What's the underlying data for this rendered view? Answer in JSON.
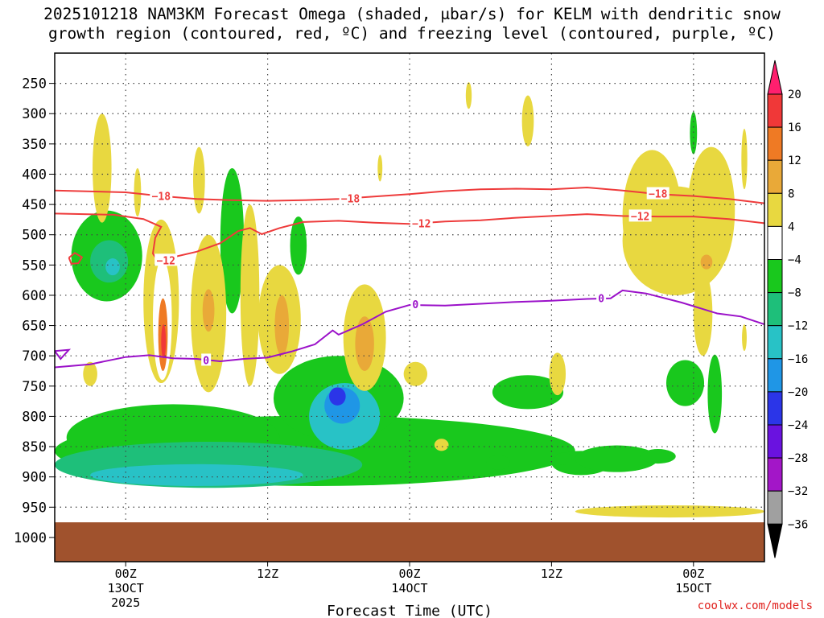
{
  "title": {
    "line1": "2025101218 NAM3KM Forecast Omega (shaded, μbar/s) for KELM with dendritic snow",
    "line2": "growth region (contoured, red, ºC) and freezing level (contoured, purple, ºC)"
  },
  "credit": "coolwx.com/models",
  "colors": {
    "red_contour": "#ee3b3b",
    "purple_contour": "#9b11c9",
    "ground": "#a0522d",
    "grid": "#444444"
  },
  "chart_data": {
    "type": "heatmap",
    "title": "2025101218 NAM3KM Forecast Omega (shaded, μbar/s) for KELM with dendritic snow growth region (contoured, red, ºC) and freezing level (contoured, purple, ºC)",
    "xlabel": "Forecast Time (UTC)",
    "ylabel": "",
    "x_range_hours": [
      -6,
      54
    ],
    "x_ticks": [
      {
        "hour": 0,
        "label": "00Z",
        "sub1": "13OCT",
        "sub2": "2025"
      },
      {
        "hour": 12,
        "label": "12Z",
        "sub1": "",
        "sub2": ""
      },
      {
        "hour": 24,
        "label": "00Z",
        "sub1": "14OCT",
        "sub2": ""
      },
      {
        "hour": 36,
        "label": "12Z",
        "sub1": "",
        "sub2": ""
      },
      {
        "hour": 48,
        "label": "00Z",
        "sub1": "15OCT",
        "sub2": ""
      }
    ],
    "y_range_mb": [
      200,
      1040
    ],
    "y_ticks": [
      250,
      300,
      350,
      400,
      450,
      500,
      550,
      600,
      650,
      700,
      750,
      800,
      850,
      900,
      950,
      1000
    ],
    "ground_top_mb": 975,
    "grid": true,
    "colorbar": {
      "labels": [
        "20",
        "16",
        "12",
        "8",
        "4",
        "−4",
        "−8",
        "−12",
        "−16",
        "−20",
        "−24",
        "−28",
        "−32",
        "−36"
      ],
      "bins": [
        {
          "color": "#ff1f6e"
        },
        {
          "color": "#f03838"
        },
        {
          "color": "#ef7a24"
        },
        {
          "color": "#e9a938"
        },
        {
          "color": "#e8d840"
        },
        {
          "color": "#ffffff"
        },
        {
          "color": "#19c81d"
        },
        {
          "color": "#1ebf7a"
        },
        {
          "color": "#28c2c6"
        },
        {
          "color": "#1f96e6"
        },
        {
          "color": "#2b35e8"
        },
        {
          "color": "#6a12e0"
        },
        {
          "color": "#a316c8"
        },
        {
          "color": "#a0a0a0"
        },
        {
          "color": "#000000"
        }
      ]
    },
    "contours": [
      {
        "label": "−18",
        "color": "#ee3b3b",
        "points": [
          [
            -6,
            427
          ],
          [
            0,
            430
          ],
          [
            3,
            436
          ],
          [
            6,
            441
          ],
          [
            9,
            443
          ],
          [
            12,
            444
          ],
          [
            15,
            443
          ],
          [
            18,
            441
          ],
          [
            21,
            437
          ],
          [
            24,
            433
          ],
          [
            27,
            428
          ],
          [
            30,
            425
          ],
          [
            33,
            424
          ],
          [
            36,
            425
          ],
          [
            39,
            422
          ],
          [
            42,
            427
          ],
          [
            45,
            433
          ],
          [
            48,
            436
          ],
          [
            51,
            441
          ],
          [
            54,
            448
          ]
        ],
        "label_at": [
          [
            3,
            436
          ],
          [
            19,
            440
          ],
          [
            45,
            432
          ]
        ]
      },
      {
        "label": "−12",
        "color": "#ee3b3b",
        "points": [
          [
            -6,
            465
          ],
          [
            -1,
            467
          ],
          [
            1.5,
            474
          ],
          [
            3,
            487
          ],
          [
            2.5,
            505
          ],
          [
            2.3,
            531
          ],
          [
            2.6,
            540
          ],
          [
            4,
            537
          ],
          [
            6,
            528
          ],
          [
            8,
            514
          ],
          [
            9.5,
            494
          ],
          [
            10.5,
            489
          ],
          [
            11.5,
            499
          ],
          [
            13,
            489
          ],
          [
            15,
            479
          ],
          [
            18,
            477
          ],
          [
            21,
            480
          ],
          [
            24,
            482
          ],
          [
            27,
            478
          ],
          [
            30,
            476
          ],
          [
            33,
            472
          ],
          [
            36,
            469
          ],
          [
            39,
            466
          ],
          [
            42,
            469
          ],
          [
            45,
            470
          ],
          [
            48,
            470
          ],
          [
            51,
            474
          ],
          [
            54,
            481
          ]
        ],
        "label_at": [
          [
            3.4,
            542
          ],
          [
            25,
            481
          ],
          [
            43.5,
            469
          ]
        ]
      },
      {
        "label": "0",
        "color": "#9b11c9",
        "points": [
          [
            -6,
            719
          ],
          [
            -3,
            714
          ],
          [
            0,
            702
          ],
          [
            2,
            699
          ],
          [
            4,
            704
          ],
          [
            6,
            705
          ],
          [
            8,
            709
          ],
          [
            10,
            705
          ],
          [
            12,
            703
          ],
          [
            14,
            693
          ],
          [
            16,
            681
          ],
          [
            17.5,
            658
          ],
          [
            18,
            665
          ],
          [
            20,
            648
          ],
          [
            22,
            627
          ],
          [
            24,
            616
          ],
          [
            27,
            617
          ],
          [
            30,
            614
          ],
          [
            33,
            611
          ],
          [
            36,
            609
          ],
          [
            39,
            606
          ],
          [
            41,
            605
          ],
          [
            42,
            592
          ],
          [
            44,
            597
          ],
          [
            47,
            612
          ],
          [
            50,
            630
          ],
          [
            52,
            635
          ],
          [
            54,
            648
          ]
        ],
        "label_at": [
          [
            6.8,
            707
          ],
          [
            24.5,
            615
          ],
          [
            40.2,
            605
          ]
        ]
      },
      {
        "label": "",
        "color": "#ee3b3b",
        "points": [
          [
            -4.8,
            538
          ],
          [
            -4.3,
            530
          ],
          [
            -3.7,
            537
          ],
          [
            -4.0,
            547
          ],
          [
            -4.6,
            548
          ],
          [
            -4.8,
            538
          ]
        ],
        "label_at": []
      },
      {
        "label": "",
        "color": "#9b11c9",
        "points": [
          [
            -6,
            692
          ],
          [
            -4.8,
            690
          ],
          [
            -5.5,
            705
          ],
          [
            -6,
            692
          ]
        ],
        "label_at": []
      }
    ],
    "omega_regions": [
      {
        "bin": 6,
        "cx": 16,
        "cy": 857,
        "rx": 22,
        "ry": 58
      },
      {
        "bin": 6,
        "cx": 4,
        "cy": 835,
        "rx": 9,
        "ry": 55
      },
      {
        "bin": 6,
        "cx": 18,
        "cy": 770,
        "rx": 5.5,
        "ry": 70
      },
      {
        "bin": 7,
        "cx": 7,
        "cy": 880,
        "rx": 13,
        "ry": 38
      },
      {
        "bin": 8,
        "cx": 6,
        "cy": 897,
        "rx": 9,
        "ry": 18
      },
      {
        "bin": 8,
        "cx": 18.5,
        "cy": 800,
        "rx": 3,
        "ry": 55
      },
      {
        "bin": 9,
        "cx": 18.3,
        "cy": 782,
        "rx": 1.5,
        "ry": 30
      },
      {
        "bin": 10,
        "cx": 17.9,
        "cy": 767,
        "rx": 0.7,
        "ry": 15
      },
      {
        "bin": 6,
        "cx": -1.6,
        "cy": 535,
        "rx": 3,
        "ry": 75
      },
      {
        "bin": 7,
        "cx": -1.4,
        "cy": 544,
        "rx": 1.6,
        "ry": 35
      },
      {
        "bin": 8,
        "cx": -1.1,
        "cy": 553,
        "rx": 0.6,
        "ry": 14
      },
      {
        "bin": 6,
        "cx": 9,
        "cy": 510,
        "rx": 1.0,
        "ry": 120
      },
      {
        "bin": 6,
        "cx": 14.6,
        "cy": 518,
        "rx": 0.7,
        "ry": 48
      },
      {
        "bin": 6,
        "cx": 34,
        "cy": 760,
        "rx": 3,
        "ry": 28
      },
      {
        "bin": 6,
        "cx": 47.3,
        "cy": 745,
        "rx": 1.6,
        "ry": 38
      },
      {
        "bin": 6,
        "cx": 49.8,
        "cy": 763,
        "rx": 0.6,
        "ry": 65
      },
      {
        "bin": 6,
        "cx": 48,
        "cy": 332,
        "rx": 0.3,
        "ry": 35
      },
      {
        "bin": 6,
        "cx": 38.5,
        "cy": 877,
        "rx": 2.5,
        "ry": 20
      },
      {
        "bin": 6,
        "cx": 41.5,
        "cy": 870,
        "rx": 3.5,
        "ry": 22
      },
      {
        "bin": 6,
        "cx": 45,
        "cy": 866,
        "rx": 1.5,
        "ry": 12
      },
      {
        "bin": 6,
        "cx": 31.5,
        "cy": 876,
        "rx": 1.0,
        "ry": 12
      },
      {
        "bin": 6,
        "cx": 37,
        "cy": 870,
        "rx": 0.7,
        "ry": 10
      },
      {
        "bin": 4,
        "cx": -2,
        "cy": 390,
        "rx": 0.8,
        "ry": 90
      },
      {
        "bin": 4,
        "cx": 1,
        "cy": 430,
        "rx": 0.3,
        "ry": 40
      },
      {
        "bin": 4,
        "cx": 3,
        "cy": 610,
        "rx": 1.5,
        "ry": 135
      },
      {
        "bin": 5,
        "cx": 3.1,
        "cy": 640,
        "rx": 0.8,
        "ry": 100
      },
      {
        "bin": 2,
        "cx": 3.15,
        "cy": 665,
        "rx": 0.4,
        "ry": 60
      },
      {
        "bin": 1,
        "cx": 3.2,
        "cy": 676,
        "rx": 0.2,
        "ry": 28
      },
      {
        "bin": 4,
        "cx": 7,
        "cy": 630,
        "rx": 1.5,
        "ry": 130
      },
      {
        "bin": 3,
        "cx": 7,
        "cy": 625,
        "rx": 0.5,
        "ry": 35
      },
      {
        "bin": 4,
        "cx": 6.2,
        "cy": 410,
        "rx": 0.5,
        "ry": 55
      },
      {
        "bin": 4,
        "cx": 10.5,
        "cy": 600,
        "rx": 0.8,
        "ry": 150
      },
      {
        "bin": 4,
        "cx": 13,
        "cy": 640,
        "rx": 1.8,
        "ry": 90
      },
      {
        "bin": 3,
        "cx": 13.2,
        "cy": 650,
        "rx": 0.6,
        "ry": 50
      },
      {
        "bin": 4,
        "cx": 20.2,
        "cy": 670,
        "rx": 1.8,
        "ry": 88
      },
      {
        "bin": 3,
        "cx": 20.2,
        "cy": 680,
        "rx": 0.8,
        "ry": 45
      },
      {
        "bin": 4,
        "cx": 24.5,
        "cy": 730,
        "rx": 1,
        "ry": 20
      },
      {
        "bin": 4,
        "cx": 29,
        "cy": 270,
        "rx": 0.25,
        "ry": 22
      },
      {
        "bin": 4,
        "cx": 34,
        "cy": 312,
        "rx": 0.5,
        "ry": 42
      },
      {
        "bin": 4,
        "cx": 21.5,
        "cy": 390,
        "rx": 0.2,
        "ry": 22
      },
      {
        "bin": 4,
        "cx": 44.5,
        "cy": 470,
        "rx": 2.5,
        "ry": 110
      },
      {
        "bin": 4,
        "cx": 49.5,
        "cy": 460,
        "rx": 2.0,
        "ry": 105
      },
      {
        "bin": 4,
        "cx": 46.5,
        "cy": 510,
        "rx": 4.5,
        "ry": 90
      },
      {
        "bin": 3,
        "cx": 49.1,
        "cy": 545,
        "rx": 0.5,
        "ry": 12
      },
      {
        "bin": 4,
        "cx": 48.8,
        "cy": 630,
        "rx": 0.8,
        "ry": 70
      },
      {
        "bin": 4,
        "cx": 52.3,
        "cy": 375,
        "rx": 0.25,
        "ry": 50
      },
      {
        "bin": 4,
        "cx": 52.3,
        "cy": 670,
        "rx": 0.2,
        "ry": 22
      },
      {
        "bin": 4,
        "cx": 46,
        "cy": 957,
        "rx": 8,
        "ry": 10
      },
      {
        "bin": 4,
        "cx": 36.5,
        "cy": 730,
        "rx": 0.7,
        "ry": 35
      },
      {
        "bin": 4,
        "cx": -3,
        "cy": 730,
        "rx": 0.6,
        "ry": 20
      },
      {
        "bin": 4,
        "cx": 26.7,
        "cy": 847,
        "rx": 0.6,
        "ry": 10
      }
    ]
  }
}
